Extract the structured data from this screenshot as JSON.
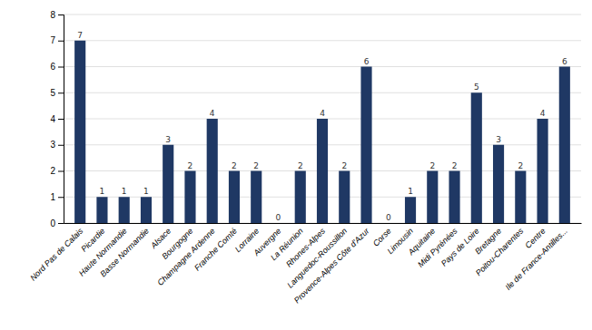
{
  "chart_data": {
    "type": "bar",
    "categories": [
      "Nord Pas de Calais",
      "Picardie",
      "Haute Normandie",
      "Basse Normandie",
      "Alsace",
      "Bourgogne",
      "Champagne Ardenne",
      "Franche Comté",
      "Lorraine",
      "Auvergne",
      "La Réunion",
      "Rhones-Alpes",
      "Languedoc-Roussillon",
      "Provence-Alpes Côte d'Azur",
      "Corse",
      "Limousin",
      "Aquitaine",
      "Midi Pyrénées",
      "Pays de Loire",
      "Bretagne",
      "Poitou-Charentes",
      "Centre",
      "Ile de France-Antilles..."
    ],
    "values": [
      7,
      1,
      1,
      1,
      3,
      2,
      4,
      2,
      2,
      0,
      2,
      4,
      2,
      6,
      0,
      1,
      2,
      2,
      5,
      3,
      2,
      4,
      6
    ],
    "color": "#1F3864",
    "ylim": [
      0,
      8
    ],
    "yticks": [
      0,
      1,
      2,
      3,
      4,
      5,
      6,
      7,
      8
    ],
    "grid": true,
    "data_labels": true
  }
}
